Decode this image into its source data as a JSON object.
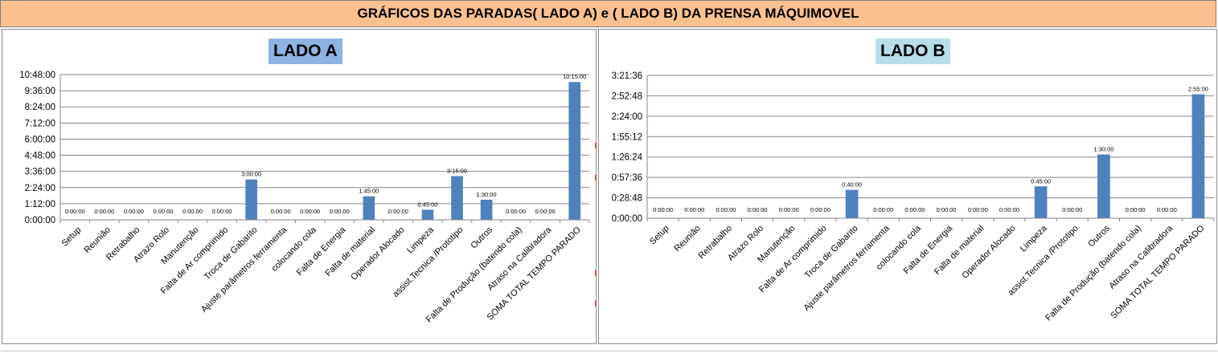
{
  "header": {
    "title": "GRÁFICOS DAS PARADAS( LADO A) e ( LADO B) DA PRENSA MÁQUIMOVEL"
  },
  "colors": {
    "banner": "#fac090",
    "bar": "#4f81bd",
    "title_a_bg": "#8eb4e3",
    "title_b_bg": "#b7dee8"
  },
  "chart_data": [
    {
      "type": "bar",
      "title": "LADO A",
      "categories": [
        "Setup",
        "Reunião",
        "Retrabalho",
        "Atrazo Rolo",
        "Manutenção",
        "Falta de Ar comprimido",
        "Troca de Gabarito",
        "Ajuste parâmetros ferramenta",
        "colocando cola",
        "Falta de Energia",
        "Falta de material",
        "Operador Alocado",
        "Limpeza",
        "assist.Tecnica /Prototipo",
        "Outros",
        "Falta de Produção (batendo cola)",
        "Atraso na Calibradora",
        "SOMA TOTAL TEMPO PARADO"
      ],
      "values": [
        0,
        0,
        0,
        0,
        0,
        0,
        10800,
        0,
        0,
        0,
        6300,
        0,
        2700,
        11700,
        5400,
        0,
        0,
        36900
      ],
      "value_labels": [
        "0:00:00",
        "0:00:00",
        "0:00:00",
        "0:00:00",
        "0:00:00",
        "0:00:00",
        "3:00:00",
        "0:00:00",
        "0:00:00",
        "0:00:00",
        "1:45:00",
        "0:00:00",
        "0:45:00",
        "3:15:00",
        "1:30:00",
        "0:00:00",
        "0:00:00",
        "10:15:00"
      ],
      "yticks": [
        0,
        4320,
        8640,
        12960,
        17280,
        21600,
        25920,
        30240,
        34560,
        38880
      ],
      "ytick_labels": [
        "0:00:00",
        "1:12:00",
        "2:24:00",
        "3:36:00",
        "4:48:00",
        "6:00:00",
        "7:12:00",
        "8:24:00",
        "9:36:00",
        "10:48:00"
      ],
      "ylim": [
        0,
        38880
      ],
      "grid": true,
      "legend": "none"
    },
    {
      "type": "bar",
      "title": "LADO B",
      "categories": [
        "Setup",
        "Reunião",
        "Retrabalho",
        "Atrazo Rolo",
        "Manutenção",
        "Falta de Ar comprimido",
        "Troca de Gabarito",
        "Ajuste parâmetros ferramenta",
        "colocando cola",
        "Falta de Energia",
        "Falta de material",
        "Operador Alocado",
        "Limpeza",
        "assist.Tecnica /Prototipo",
        "Outros",
        "Falta de Produção (batendo cola)",
        "Atraso na Calibradora",
        "SOMA TOTAL TEMPO PARADO"
      ],
      "values": [
        0,
        0,
        0,
        0,
        0,
        0,
        2400,
        0,
        0,
        0,
        0,
        0,
        2700,
        0,
        5400,
        0,
        0,
        10500
      ],
      "value_labels": [
        "0:00:00",
        "0:00:00",
        "0:00:00",
        "0:00:00",
        "0:00:00",
        "0:00:00",
        "0:40:00",
        "0:00:00",
        "0:00:00",
        "0:00:00",
        "0:00:00",
        "0:00:00",
        "0:45:00",
        "0:00:00",
        "1:30:00",
        "0:00:00",
        "0:00:00",
        "2:55:00"
      ],
      "yticks": [
        0,
        1728,
        3456,
        5184,
        6912,
        8640,
        10368,
        12096
      ],
      "ytick_labels": [
        "0:00:00",
        "0:28:48",
        "0:57:36",
        "1:26:24",
        "1:55:12",
        "2:24:00",
        "2:52:48",
        "3:21:36"
      ],
      "ylim": [
        0,
        12096
      ],
      "grid": true,
      "legend": "none"
    }
  ]
}
